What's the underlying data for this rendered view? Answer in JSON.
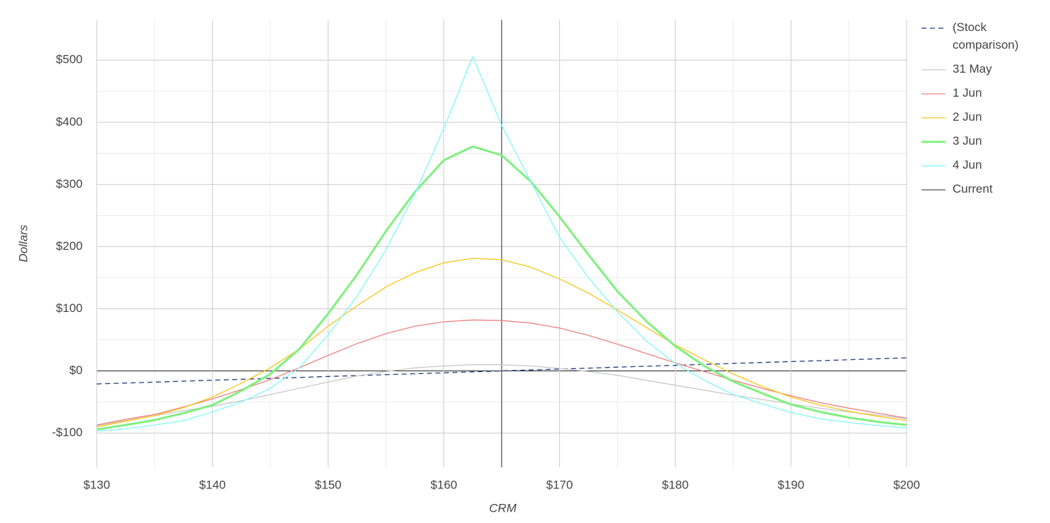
{
  "chart_data": {
    "type": "line",
    "x_label": "CRM",
    "y_label": "Dollars",
    "x": [
      130,
      132.5,
      135,
      137.5,
      140,
      142.5,
      145,
      147.5,
      150,
      152.5,
      155,
      157.5,
      160,
      162.5,
      165,
      167.5,
      170,
      172.5,
      175,
      177.5,
      180,
      182.5,
      185,
      187.5,
      190,
      192.5,
      195,
      197.5,
      200
    ],
    "series": [
      {
        "name": "(Stock comparison)",
        "color": "#1f3a78",
        "dash": true,
        "width": 1.3,
        "values": [
          -21,
          -19.5,
          -18,
          -16.5,
          -15,
          -13.5,
          -12,
          -10.5,
          -9,
          -7.5,
          -6,
          -4.5,
          -3,
          -1.5,
          0,
          1.5,
          3,
          4.5,
          6,
          7.5,
          9,
          10.5,
          12,
          13.5,
          15,
          16.5,
          18,
          19.5,
          21
        ]
      },
      {
        "name": "31 May",
        "color": "#c8c8c8",
        "width": 1.3,
        "values": [
          -88,
          -80,
          -72,
          -64,
          -57,
          -48,
          -38,
          -28,
          -18,
          -8,
          -1,
          5,
          8,
          10,
          10,
          8,
          4,
          -1,
          -7,
          -15,
          -23,
          -31,
          -39,
          -46,
          -53,
          -60,
          -66,
          -71,
          -77
        ]
      },
      {
        "name": "1 Jun",
        "color": "#f08080",
        "width": 1.3,
        "values": [
          -87,
          -78,
          -70,
          -58,
          -45,
          -30,
          -14,
          5,
          25,
          44,
          60,
          72,
          79,
          82,
          81,
          77,
          69,
          57,
          43,
          28,
          13,
          -1,
          -15,
          -28,
          -40,
          -51,
          -60,
          -68,
          -76
        ]
      },
      {
        "name": "2 Jun",
        "color": "#f5c518",
        "width": 1.3,
        "values": [
          -90,
          -81,
          -72,
          -59,
          -42,
          -20,
          5,
          35,
          72,
          105,
          135,
          158,
          174,
          181,
          179,
          167,
          148,
          125,
          98,
          70,
          42,
          18,
          -5,
          -25,
          -42,
          -55,
          -65,
          -73,
          -80
        ]
      },
      {
        "name": "3 Jun",
        "color": "#80f080",
        "width": 3,
        "values": [
          -94,
          -87,
          -79,
          -68,
          -55,
          -32,
          -5,
          35,
          92,
          155,
          225,
          288,
          339,
          361,
          347,
          305,
          248,
          187,
          128,
          80,
          40,
          8,
          -17,
          -36,
          -54,
          -66,
          -75,
          -82,
          -87
        ]
      },
      {
        "name": "4 Jun",
        "color": "#80f8f8",
        "width": 1.3,
        "values": [
          -97,
          -93,
          -87,
          -80,
          -66,
          -50,
          -28,
          5,
          58,
          120,
          195,
          285,
          390,
          506,
          395,
          305,
          215,
          150,
          95,
          48,
          12,
          -15,
          -38,
          -53,
          -67,
          -77,
          -83,
          -88,
          -92
        ]
      }
    ],
    "current": {
      "name": "Current",
      "x": 165,
      "color": "#555555"
    },
    "xlim": [
      130,
      200
    ],
    "ylim": [
      -155,
      565
    ],
    "xticks": [
      {
        "value": 130,
        "label": "$130"
      },
      {
        "value": 140,
        "label": "$140"
      },
      {
        "value": 150,
        "label": "$150"
      },
      {
        "value": 160,
        "label": "$160"
      },
      {
        "value": 170,
        "label": "$170"
      },
      {
        "value": 180,
        "label": "$180"
      },
      {
        "value": 190,
        "label": "$190"
      },
      {
        "value": 200,
        "label": "$200"
      }
    ],
    "yticks": [
      {
        "value": -100,
        "label": "-$100"
      },
      {
        "value": 0,
        "label": "$0"
      },
      {
        "value": 100,
        "label": "$100"
      },
      {
        "value": 200,
        "label": "$200"
      },
      {
        "value": 300,
        "label": "$300"
      },
      {
        "value": 400,
        "label": "$400"
      },
      {
        "value": 500,
        "label": "$500"
      }
    ],
    "grid": true,
    "legend": "right"
  }
}
